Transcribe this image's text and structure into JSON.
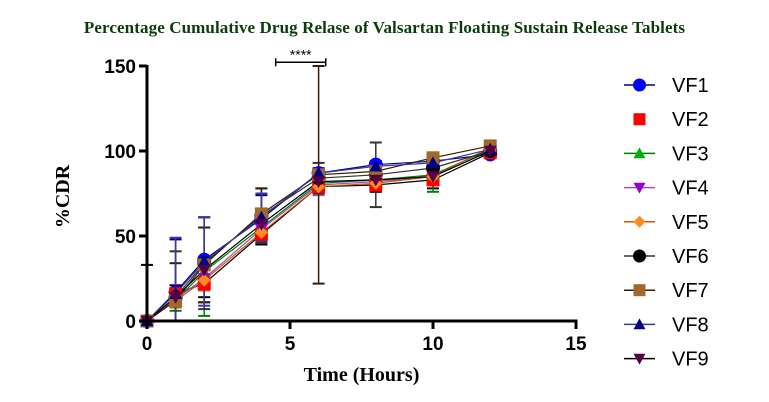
{
  "chart_data": {
    "type": "line",
    "title": "Percentage Cumulative Drug Relase of Valsartan Floating Sustain Release Tablets",
    "xlabel": "Time (Hours)",
    "ylabel": "%CDR",
    "xlim": [
      0,
      15
    ],
    "ylim": [
      0,
      150
    ],
    "xticks": [
      0,
      5,
      10,
      15
    ],
    "yticks": [
      0,
      50,
      100,
      150
    ],
    "xtick_labels": [
      "0",
      "5",
      "10",
      "15"
    ],
    "ytick_labels": [
      "0",
      "50",
      "100",
      "150"
    ],
    "grid": false,
    "legend_position": "right",
    "x": [
      0,
      1,
      2,
      4,
      6,
      8,
      10,
      12
    ],
    "series": [
      {
        "name": "VF1",
        "color": "#0000ff",
        "line_color": "#00008b",
        "marker": "circle",
        "values": [
          0,
          17,
          36,
          60,
          87,
          92,
          94,
          98
        ],
        "errors": [
          0,
          31,
          25,
          14,
          3,
          2,
          2,
          2
        ]
      },
      {
        "name": "VF2",
        "color": "#ff0000",
        "line_color": "#000000",
        "marker": "square",
        "no_line_in_legend": true,
        "values": [
          0,
          16,
          22,
          51,
          79,
          80,
          83,
          99
        ],
        "errors": [
          0,
          5,
          8,
          6,
          4,
          4,
          5,
          2
        ]
      },
      {
        "name": "VF3",
        "color": "#00b000",
        "line_color": "#008000",
        "marker": "triangle-up",
        "values": [
          0,
          12,
          29,
          55,
          81,
          83,
          86,
          101
        ],
        "errors": [
          0,
          6,
          26,
          9,
          5,
          6,
          10,
          2
        ]
      },
      {
        "name": "VF4",
        "color": "#9900cc",
        "line_color": "#a050c0",
        "marker": "triangle-down",
        "values": [
          0,
          13,
          25,
          54,
          80,
          82,
          85,
          100
        ],
        "errors": [
          0,
          5,
          7,
          5,
          6,
          5,
          4,
          2
        ]
      },
      {
        "name": "VF5",
        "color": "#ff8c1a",
        "line_color": "#cc5500",
        "marker": "diamond",
        "values": [
          0,
          12,
          24,
          52,
          79,
          81,
          85,
          102
        ],
        "errors": [
          0,
          4,
          6,
          5,
          4,
          4,
          4,
          2
        ]
      },
      {
        "name": "VF6",
        "color": "#000000",
        "line_color": "#333333",
        "marker": "circle",
        "values": [
          0,
          14,
          34,
          62,
          84,
          86,
          90,
          100
        ],
        "errors": [
          0,
          27,
          27,
          16,
          9,
          19,
          4,
          2
        ]
      },
      {
        "name": "VF7",
        "color": "#a0692a",
        "line_color": "#3a1a00",
        "marker": "square",
        "values": [
          0,
          12,
          33,
          63,
          86,
          88,
          96,
          103
        ],
        "errors": [
          0,
          22,
          22,
          15,
          64,
          4,
          3,
          2
        ]
      },
      {
        "name": "VF8",
        "color": "#00008b",
        "line_color": "#3a3a9a",
        "marker": "triangle-up",
        "values": [
          0,
          16,
          35,
          61,
          87,
          91,
          93,
          101
        ],
        "errors": [
          0,
          33,
          26,
          14,
          3,
          3,
          3,
          2
        ]
      },
      {
        "name": "VF9",
        "color": "#550044",
        "line_color": "#000000",
        "marker": "triangle-down",
        "values": [
          0,
          14,
          30,
          57,
          82,
          83,
          85,
          100
        ],
        "errors": [
          33,
          5,
          7,
          5,
          4,
          4,
          4,
          2
        ]
      }
    ],
    "annotations": [
      {
        "text": "****",
        "type": "significance-bracket",
        "x_range": [
          4.5,
          6.25
        ],
        "y": 151
      }
    ]
  }
}
